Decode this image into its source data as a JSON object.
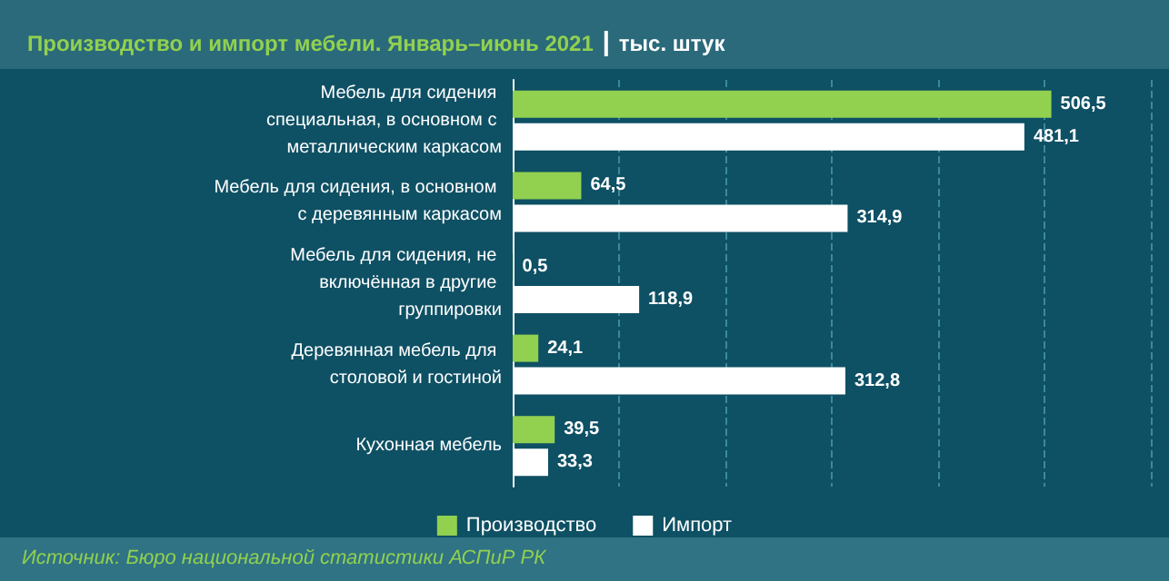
{
  "chart_data": {
    "type": "bar",
    "orientation": "horizontal",
    "title": "Производство и импорт мебели. Январь–июнь 2021",
    "subtitle": "тыс. штук",
    "categories": [
      "Мебель для сидения специальная, в основном с металлическим каркасом",
      "Мебель для сидения, в основном с деревянным каркасом",
      "Мебель для сидения, не включённая в другие группировки",
      "Деревянная мебель для столовой и гостиной",
      "Кухонная мебель"
    ],
    "series": [
      {
        "name": "Производство",
        "color": "#92d050",
        "values": [
          506.5,
          64.5,
          0.5,
          24.1,
          39.5
        ],
        "value_labels": [
          "506,5",
          "64,5",
          "0,5",
          "24,1",
          "39,5"
        ]
      },
      {
        "name": "Импорт",
        "color": "#ffffff",
        "values": [
          481.1,
          314.9,
          118.9,
          312.8,
          33.3
        ],
        "value_labels": [
          "481,1",
          "314,9",
          "118,9",
          "312,8",
          "33,3"
        ]
      }
    ],
    "xlim": [
      0,
      600
    ],
    "xticks": [
      {
        "value": 0,
        "label": null
      },
      {
        "value": 100,
        "label": null
      },
      {
        "value": 200,
        "label": null
      },
      {
        "value": 300,
        "label": null
      },
      {
        "value": 400,
        "label": null
      },
      {
        "value": 500,
        "label": null
      },
      {
        "value": 600,
        "label": null
      }
    ],
    "tick_labels": "y",
    "grid": "x",
    "legend": "bottom",
    "annotations": [
      "Источник: Бюро национальной статистики АСПиР РК"
    ]
  }
}
